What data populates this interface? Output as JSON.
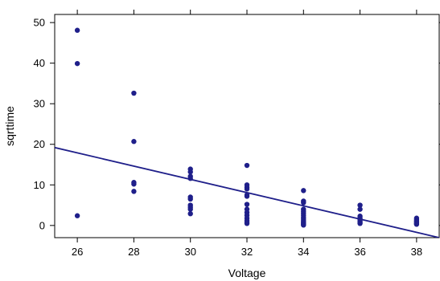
{
  "chart_data": {
    "type": "scatter",
    "xlabel": "Voltage",
    "ylabel": "sqrttime",
    "xlim": [
      25.2,
      38.8
    ],
    "ylim": [
      -3,
      52
    ],
    "x_ticks": [
      26,
      28,
      30,
      32,
      34,
      36,
      38
    ],
    "x_tick_labels": [
      "26",
      "28",
      "30",
      "32",
      "34",
      "36",
      "38"
    ],
    "y_ticks": [
      0,
      10,
      20,
      30,
      40,
      50
    ],
    "y_tick_labels": [
      "0",
      "10",
      "20",
      "30",
      "40",
      "50"
    ],
    "grid": false,
    "point_color": "#1f1f8a",
    "line_color": "#1f1f8a",
    "points": [
      {
        "x": 26,
        "y": 48.1
      },
      {
        "x": 26,
        "y": 39.9
      },
      {
        "x": 26,
        "y": 2.4
      },
      {
        "x": 28,
        "y": 32.6
      },
      {
        "x": 28,
        "y": 20.7
      },
      {
        "x": 28,
        "y": 10.6
      },
      {
        "x": 28,
        "y": 10.2
      },
      {
        "x": 28,
        "y": 8.4
      },
      {
        "x": 30,
        "y": 13.9
      },
      {
        "x": 30,
        "y": 13.2
      },
      {
        "x": 30,
        "y": 12.1
      },
      {
        "x": 30,
        "y": 11.6
      },
      {
        "x": 30,
        "y": 7.0
      },
      {
        "x": 30,
        "y": 6.5
      },
      {
        "x": 30,
        "y": 5.0
      },
      {
        "x": 30,
        "y": 4.5
      },
      {
        "x": 30,
        "y": 4.0
      },
      {
        "x": 30,
        "y": 2.9
      },
      {
        "x": 32,
        "y": 14.8
      },
      {
        "x": 32,
        "y": 10.0
      },
      {
        "x": 32,
        "y": 9.4
      },
      {
        "x": 32,
        "y": 9.0
      },
      {
        "x": 32,
        "y": 7.5
      },
      {
        "x": 32,
        "y": 7.2
      },
      {
        "x": 32,
        "y": 5.2
      },
      {
        "x": 32,
        "y": 4.0
      },
      {
        "x": 32,
        "y": 3.2
      },
      {
        "x": 32,
        "y": 2.5
      },
      {
        "x": 32,
        "y": 1.8
      },
      {
        "x": 32,
        "y": 1.2
      },
      {
        "x": 32,
        "y": 0.8
      },
      {
        "x": 32,
        "y": 0.5
      },
      {
        "x": 34,
        "y": 8.6
      },
      {
        "x": 34,
        "y": 6.0
      },
      {
        "x": 34,
        "y": 5.6
      },
      {
        "x": 34,
        "y": 4.0
      },
      {
        "x": 34,
        "y": 3.5
      },
      {
        "x": 34,
        "y": 3.0
      },
      {
        "x": 34,
        "y": 2.5
      },
      {
        "x": 34,
        "y": 2.0
      },
      {
        "x": 34,
        "y": 1.6
      },
      {
        "x": 34,
        "y": 1.2
      },
      {
        "x": 34,
        "y": 0.9
      },
      {
        "x": 34,
        "y": 0.6
      },
      {
        "x": 34,
        "y": 0.4
      },
      {
        "x": 34,
        "y": 0.2
      },
      {
        "x": 34,
        "y": 0.1
      },
      {
        "x": 36,
        "y": 5.0
      },
      {
        "x": 36,
        "y": 4.0
      },
      {
        "x": 36,
        "y": 2.3
      },
      {
        "x": 36,
        "y": 1.8
      },
      {
        "x": 36,
        "y": 1.4
      },
      {
        "x": 36,
        "y": 1.0
      },
      {
        "x": 36,
        "y": 0.7
      },
      {
        "x": 36,
        "y": 0.5
      },
      {
        "x": 38,
        "y": 1.8
      },
      {
        "x": 38,
        "y": 1.4
      },
      {
        "x": 38,
        "y": 1.1
      },
      {
        "x": 38,
        "y": 0.9
      },
      {
        "x": 38,
        "y": 0.6
      },
      {
        "x": 38,
        "y": 0.4
      },
      {
        "x": 38,
        "y": 0.3
      }
    ],
    "fit_line": {
      "x": [
        25.2,
        38.8
      ],
      "y": [
        19.2,
        -3.0
      ]
    }
  }
}
